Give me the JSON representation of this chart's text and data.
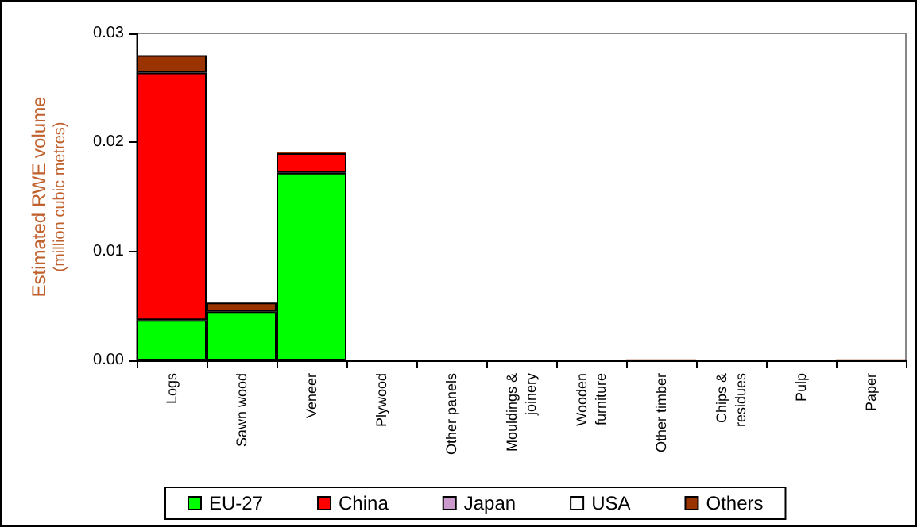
{
  "chart_data": {
    "type": "bar",
    "stacked": true,
    "ylabel": "Estimated RWE volume\n(million cubic metres)",
    "categories": [
      "Logs",
      "Sawn wood",
      "Veneer",
      "Plywood",
      "Other panels",
      "Mouldings &\njoinery",
      "Wooden\nfurniture",
      "Other timber",
      "Chips &\nresidues",
      "Pulp",
      "Paper"
    ],
    "series": [
      {
        "name": "EU-27",
        "color": "#00ff00",
        "values": [
          0.0037,
          0.0045,
          0.0172,
          0,
          0,
          0,
          0,
          0,
          0,
          0,
          0
        ]
      },
      {
        "name": "China",
        "color": "#ff0000",
        "values": [
          0.0227,
          0,
          0.0018,
          0,
          0,
          0,
          0,
          0,
          0,
          0,
          0
        ]
      },
      {
        "name": "Japan",
        "color": "#cc99cc",
        "values": [
          0,
          0,
          0,
          0,
          0,
          0,
          0,
          0,
          0,
          0,
          0
        ]
      },
      {
        "name": "USA",
        "color": "#ffffff",
        "values": [
          0,
          0,
          0,
          0,
          0,
          0,
          0,
          0,
          0,
          0,
          0
        ]
      },
      {
        "name": "Others",
        "color": "#993300",
        "values": [
          0.0016,
          0.0008,
          0.0001,
          0,
          0,
          0,
          0,
          0.0001,
          0,
          0,
          0.0001
        ]
      }
    ],
    "ylim": [
      0,
      0.03
    ],
    "yticks": [
      {
        "value": 0,
        "label": "0.00"
      },
      {
        "value": 0.01,
        "label": "0.01"
      },
      {
        "value": 0.02,
        "label": "0.02"
      },
      {
        "value": 0.03,
        "label": "0.03"
      }
    ],
    "grid": false,
    "legend": "bottom"
  }
}
